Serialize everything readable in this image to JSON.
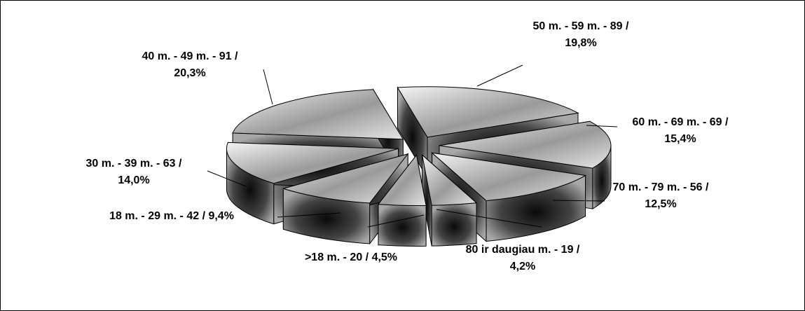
{
  "chart_data": {
    "type": "pie",
    "style": "3d-exploded",
    "colors": {
      "top_light": "#f2f2f2",
      "top_dark": "#7a7a7a",
      "side_light": "#a6a6a6",
      "side_dark": "#101010",
      "edge": "#000000"
    },
    "slices": [
      {
        "name": "50 m. - 59 m.",
        "value": 89,
        "percent": "19,8%",
        "label_line1": "50 m. - 59 m. - 89 /",
        "label_line2": "19,8%"
      },
      {
        "name": "60 m. - 69 m.",
        "value": 69,
        "percent": "15,4%",
        "label_line1": "60 m. - 69 m. - 69 /",
        "label_line2": "15,4%"
      },
      {
        "name": "70 m. - 79 m.",
        "value": 56,
        "percent": "12,5%",
        "label_line1": "70 m. - 79 m. - 56 /",
        "label_line2": "12,5%"
      },
      {
        "name": "80 ir daugiau m.",
        "value": 19,
        "percent": "4,2%",
        "label_line1": "80 ir daugiau m. - 19 /",
        "label_line2": "4,2%"
      },
      {
        "name": ">18 m.",
        "value": 20,
        "percent": "4,5%",
        "label_line1": ">18 m. - 20 / 4,5%",
        "label_line2": ""
      },
      {
        "name": "18 m. - 29 m.",
        "value": 42,
        "percent": "9,4%",
        "label_line1": "18 m. - 29 m. - 42 / 9,4%",
        "label_line2": ""
      },
      {
        "name": "30 m. - 39 m.",
        "value": 63,
        "percent": "14,0%",
        "label_line1": "30 m. - 39 m. - 63 /",
        "label_line2": "14,0%"
      },
      {
        "name": "40 m. - 49 m.",
        "value": 91,
        "percent": "20,3%",
        "label_line1": "40 m. - 49 m. - 91 /",
        "label_line2": "20,3%"
      }
    ]
  }
}
